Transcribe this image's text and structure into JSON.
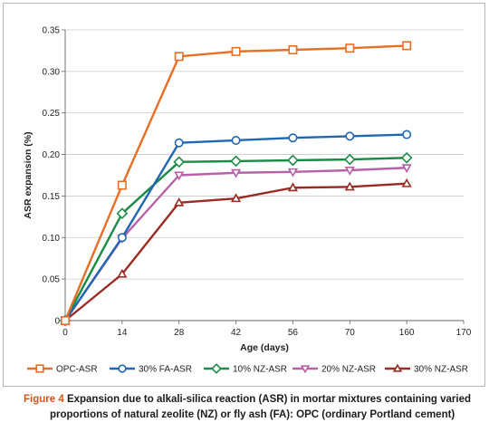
{
  "chart_data": {
    "type": "line",
    "xlabel": "Age (days)",
    "ylabel": "ASR expansion (%)",
    "x_tick_labels": [
      "0",
      "14",
      "28",
      "42",
      "56",
      "70",
      "160",
      "170"
    ],
    "x": [
      "0",
      "14",
      "28",
      "42",
      "56",
      "70",
      "160"
    ],
    "y_ticks": [
      "0",
      "0.05",
      "0.10",
      "0.15",
      "0.20",
      "0.25",
      "0.30",
      "0.35"
    ],
    "ylim": [
      0,
      0.35
    ],
    "grid": "horizontal",
    "legend_position": "bottom",
    "series": [
      {
        "name": "OPC-ASR",
        "marker": "square",
        "color": "#e56f24",
        "values": [
          0,
          0.163,
          0.318,
          0.324,
          0.326,
          0.328,
          0.331
        ]
      },
      {
        "name": "30% FA-ASR",
        "marker": "circle",
        "color": "#1f67b1",
        "values": [
          0,
          0.1,
          0.214,
          0.217,
          0.22,
          0.222,
          0.224
        ]
      },
      {
        "name": "10% NZ-ASR",
        "marker": "diamond",
        "color": "#1b8c45",
        "values": [
          0,
          0.129,
          0.191,
          0.192,
          0.193,
          0.194,
          0.196
        ]
      },
      {
        "name": "20% NZ-ASR",
        "marker": "triangle-down",
        "color": "#b661a8",
        "values": [
          0,
          0.099,
          0.175,
          0.178,
          0.179,
          0.181,
          0.184
        ]
      },
      {
        "name": "30% NZ-ASR",
        "marker": "triangle-up",
        "color": "#9b2a22",
        "values": [
          0,
          0.056,
          0.142,
          0.147,
          0.16,
          0.161,
          0.165
        ]
      }
    ]
  },
  "caption": {
    "figure_label": "Figure 4",
    "line1": "Expansion due to alkali-silica reaction (ASR) in mortar mixtures containing varied",
    "line2": "proportions of natural zeolite (NZ) or fly ash (FA): OPC (ordinary Portland cement)"
  }
}
